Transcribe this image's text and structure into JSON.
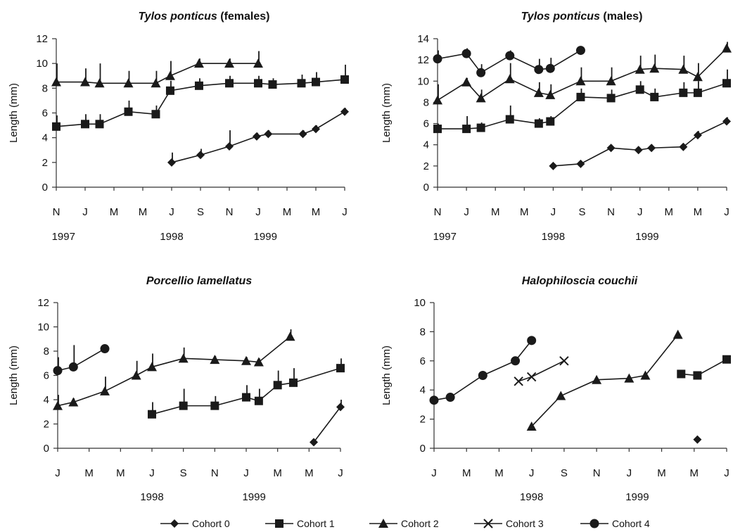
{
  "legend": [
    {
      "name": "Cohort 0",
      "marker": "diamond"
    },
    {
      "name": "Cohort 1",
      "marker": "square"
    },
    {
      "name": "Cohort 2",
      "marker": "triangle"
    },
    {
      "name": "Cohort 3",
      "marker": "cross"
    },
    {
      "name": "Cohort 4",
      "marker": "circle"
    }
  ],
  "colors": {
    "series": "#1a1a1a",
    "axis": "#333333",
    "background": "#ffffff"
  },
  "chart_data": [
    {
      "type": "line",
      "title_species": "Tylos ponticus",
      "title_suffix": "(females)",
      "ylabel": "Length (mm)",
      "ylim": [
        0,
        12
      ],
      "yticks": [
        0,
        2,
        4,
        6,
        8,
        10,
        12
      ],
      "xlim": [
        0,
        20
      ],
      "xticks": [
        {
          "x": 0,
          "label": "N"
        },
        {
          "x": 2,
          "label": "J"
        },
        {
          "x": 4,
          "label": "M"
        },
        {
          "x": 6,
          "label": "M"
        },
        {
          "x": 8,
          "label": "J"
        },
        {
          "x": 10,
          "label": "S"
        },
        {
          "x": 12,
          "label": "N"
        },
        {
          "x": 14,
          "label": "J"
        },
        {
          "x": 16,
          "label": "M"
        },
        {
          "x": 18,
          "label": "M"
        },
        {
          "x": 20,
          "label": "J"
        }
      ],
      "years": [
        {
          "x": 0.5,
          "label": "1997"
        },
        {
          "x": 8,
          "label": "1998"
        },
        {
          "x": 14.5,
          "label": "1999"
        }
      ],
      "series": [
        {
          "name": "Cohort 0",
          "marker": "diamond",
          "points": [
            [
              8,
              2.0,
              0.8
            ],
            [
              10,
              2.6,
              0.5
            ],
            [
              12,
              3.3,
              1.3
            ],
            [
              13.9,
              4.1,
              0.3
            ],
            [
              14.7,
              4.3,
              0.3
            ],
            [
              17.1,
              4.3,
              0.3
            ],
            [
              18,
              4.7,
              0.3
            ],
            [
              20,
              6.1,
              0.3
            ]
          ]
        },
        {
          "name": "Cohort 1",
          "marker": "square",
          "points": [
            [
              0,
              4.9,
              0.9
            ],
            [
              2,
              5.1,
              0.8
            ],
            [
              3,
              5.1,
              0.8
            ],
            [
              5,
              6.1,
              0.9
            ],
            [
              6.9,
              5.9,
              0.7
            ],
            [
              7.9,
              7.8,
              0.8
            ],
            [
              9.9,
              8.2,
              0.6
            ],
            [
              12,
              8.4,
              0.6
            ],
            [
              14,
              8.4,
              0.6
            ],
            [
              15,
              8.3,
              0.5
            ],
            [
              17,
              8.4,
              0.7
            ],
            [
              18,
              8.5,
              0.8
            ],
            [
              20,
              8.7,
              1.2
            ]
          ]
        },
        {
          "name": "Cohort 2",
          "marker": "triangle",
          "points": [
            [
              0,
              8.5,
              1.5
            ],
            [
              2,
              8.5,
              1.1
            ],
            [
              3,
              8.4,
              1.6
            ],
            [
              5,
              8.4,
              1.0
            ],
            [
              6.9,
              8.4,
              1.0
            ],
            [
              7.9,
              9.0,
              1.2
            ],
            [
              9.9,
              10.0,
              0.4
            ],
            [
              12,
              10.0,
              0.4
            ],
            [
              14,
              10.0,
              1.0
            ]
          ]
        }
      ]
    },
    {
      "type": "line",
      "title_species": "Tylos ponticus",
      "title_suffix": "(males)",
      "ylabel": "Length (mm)",
      "ylim": [
        0,
        14
      ],
      "yticks": [
        0,
        2,
        4,
        6,
        8,
        10,
        12,
        14
      ],
      "xlim": [
        0,
        20
      ],
      "xticks": [
        {
          "x": 0,
          "label": "N"
        },
        {
          "x": 2,
          "label": "J"
        },
        {
          "x": 4,
          "label": "M"
        },
        {
          "x": 6,
          "label": "M"
        },
        {
          "x": 8,
          "label": "J"
        },
        {
          "x": 10,
          "label": "S"
        },
        {
          "x": 12,
          "label": "N"
        },
        {
          "x": 14,
          "label": "J"
        },
        {
          "x": 16,
          "label": "M"
        },
        {
          "x": 18,
          "label": "M"
        },
        {
          "x": 20,
          "label": "J"
        }
      ],
      "years": [
        {
          "x": 0.5,
          "label": "1997"
        },
        {
          "x": 8,
          "label": "1998"
        },
        {
          "x": 14.5,
          "label": "1999"
        }
      ],
      "series": [
        {
          "name": "Cohort 0",
          "marker": "diamond",
          "points": [
            [
              8,
              2.0,
              0
            ],
            [
              9.9,
              2.2,
              0.3
            ],
            [
              12,
              3.7,
              0.3
            ],
            [
              13.9,
              3.5,
              0.3
            ],
            [
              14.8,
              3.7,
              0.3
            ],
            [
              17,
              3.8,
              0.3
            ],
            [
              18,
              4.9,
              0.4
            ],
            [
              20,
              6.2,
              0.4
            ]
          ]
        },
        {
          "name": "Cohort 1",
          "marker": "square",
          "points": [
            [
              0,
              5.5,
              0.5
            ],
            [
              2,
              5.5,
              1.2
            ],
            [
              3,
              5.6,
              0.5
            ],
            [
              5,
              6.4,
              1.3
            ],
            [
              7,
              6.0,
              0.5
            ],
            [
              7.8,
              6.2,
              0.5
            ],
            [
              9.9,
              8.5,
              0.8
            ],
            [
              12,
              8.4,
              0.8
            ],
            [
              14,
              9.2,
              0.8
            ],
            [
              15,
              8.5,
              0.8
            ],
            [
              17,
              8.9,
              1.0
            ],
            [
              18,
              8.9,
              1.1
            ],
            [
              20,
              9.8,
              1.3
            ]
          ]
        },
        {
          "name": "Cohort 2",
          "marker": "triangle",
          "points": [
            [
              0,
              8.2,
              1.5
            ],
            [
              2,
              9.9,
              0.4
            ],
            [
              3,
              8.4,
              0.8
            ],
            [
              5,
              10.2,
              1.5
            ],
            [
              7,
              8.9,
              1.0
            ],
            [
              7.8,
              8.7,
              1.0
            ],
            [
              9.9,
              10.0,
              1.3
            ],
            [
              12,
              10.0,
              1.3
            ],
            [
              14,
              11.1,
              1.3
            ],
            [
              15,
              11.2,
              1.3
            ],
            [
              17,
              11.1,
              1.3
            ],
            [
              18,
              10.4,
              1.3
            ],
            [
              20,
              13.1,
              0.6
            ]
          ]
        },
        {
          "name": "Cohort 4",
          "marker": "circle",
          "points": [
            [
              0,
              12.1,
              0.8
            ],
            [
              2,
              12.6,
              0.5
            ],
            [
              3,
              10.8,
              0.8
            ],
            [
              5,
              12.4,
              0.5
            ],
            [
              7,
              11.1,
              1.0
            ],
            [
              7.8,
              11.2,
              1.0
            ],
            [
              9.9,
              12.9,
              0
            ]
          ]
        }
      ]
    },
    {
      "type": "line",
      "title_species": "Porcellio lamellatus",
      "title_suffix": "",
      "ylabel": "Length (mm)",
      "ylim": [
        0,
        12
      ],
      "yticks": [
        0,
        2,
        4,
        6,
        8,
        10,
        12
      ],
      "xlim": [
        0,
        18
      ],
      "xticks": [
        {
          "x": 0,
          "label": "J"
        },
        {
          "x": 2,
          "label": "M"
        },
        {
          "x": 4,
          "label": "M"
        },
        {
          "x": 6,
          "label": "J"
        },
        {
          "x": 8,
          "label": "S"
        },
        {
          "x": 10,
          "label": "N"
        },
        {
          "x": 12,
          "label": "J"
        },
        {
          "x": 14,
          "label": "M"
        },
        {
          "x": 16,
          "label": "M"
        },
        {
          "x": 18,
          "label": "J"
        }
      ],
      "years": [
        {
          "x": 6,
          "label": "1998"
        },
        {
          "x": 12.5,
          "label": "1999"
        }
      ],
      "series": [
        {
          "name": "Cohort 0",
          "marker": "diamond",
          "points": [
            [
              16.3,
              0.5,
              0
            ],
            [
              18,
              3.4,
              0.6
            ]
          ]
        },
        {
          "name": "Cohort 1",
          "marker": "square",
          "points": [
            [
              6,
              2.8,
              1.0
            ],
            [
              8,
              3.5,
              1.4
            ],
            [
              10,
              3.5,
              0.8
            ],
            [
              12,
              4.2,
              1.0
            ],
            [
              12.8,
              3.9,
              1.0
            ],
            [
              14,
              5.2,
              1.2
            ],
            [
              15,
              5.4,
              1.2
            ],
            [
              18,
              6.6,
              0.8
            ]
          ]
        },
        {
          "name": "Cohort 2",
          "marker": "triangle",
          "points": [
            [
              0,
              3.5,
              0.9
            ],
            [
              1,
              3.8,
              0.3
            ],
            [
              3,
              4.7,
              1.2
            ],
            [
              5,
              6.0,
              1.2
            ],
            [
              6,
              6.7,
              1.1
            ],
            [
              8,
              7.4,
              0.9
            ],
            [
              10,
              7.3,
              0.3
            ],
            [
              12,
              7.2,
              0.3
            ],
            [
              12.8,
              7.1,
              0.3
            ],
            [
              14.8,
              9.2,
              0.6
            ]
          ]
        },
        {
          "name": "Cohort 4",
          "marker": "circle",
          "points": [
            [
              0,
              6.4,
              1.1
            ],
            [
              1,
              6.7,
              1.8
            ],
            [
              3,
              8.2,
              0.3
            ]
          ]
        }
      ]
    },
    {
      "type": "line",
      "title_species": "Halophiloscia couchii",
      "title_suffix": "",
      "ylabel": "Length (mm)",
      "ylim": [
        0,
        10
      ],
      "yticks": [
        0,
        2,
        4,
        6,
        8,
        10
      ],
      "xlim": [
        0,
        18
      ],
      "xticks": [
        {
          "x": 0,
          "label": "J"
        },
        {
          "x": 2,
          "label": "M"
        },
        {
          "x": 4,
          "label": "M"
        },
        {
          "x": 6,
          "label": "J"
        },
        {
          "x": 8,
          "label": "S"
        },
        {
          "x": 10,
          "label": "N"
        },
        {
          "x": 12,
          "label": "J"
        },
        {
          "x": 14,
          "label": "M"
        },
        {
          "x": 16,
          "label": "M"
        },
        {
          "x": 18,
          "label": "J"
        }
      ],
      "years": [
        {
          "x": 6,
          "label": "1998"
        },
        {
          "x": 12.5,
          "label": "1999"
        }
      ],
      "series": [
        {
          "name": "Cohort 0",
          "marker": "diamond",
          "points": [
            [
              16.2,
              0.6,
              0
            ]
          ]
        },
        {
          "name": "Cohort 1",
          "marker": "square",
          "points": [
            [
              15.2,
              5.1,
              0
            ],
            [
              16.2,
              5.0,
              0
            ],
            [
              18,
              6.1,
              0
            ]
          ]
        },
        {
          "name": "Cohort 2",
          "marker": "triangle",
          "points": [
            [
              6,
              1.5,
              0
            ],
            [
              7.8,
              3.6,
              0
            ],
            [
              10,
              4.7,
              0
            ],
            [
              12,
              4.8,
              0
            ],
            [
              13,
              5.0,
              0
            ],
            [
              15,
              7.8,
              0
            ]
          ]
        },
        {
          "name": "Cohort 3",
          "marker": "cross",
          "points": [
            [
              5.2,
              4.6,
              0
            ],
            [
              6,
              4.9,
              0
            ],
            [
              8,
              6.0,
              0
            ]
          ]
        },
        {
          "name": "Cohort 4",
          "marker": "circle",
          "points": [
            [
              0,
              3.3,
              0
            ],
            [
              1,
              3.5,
              0
            ],
            [
              3,
              5.0,
              0
            ],
            [
              5,
              6.0,
              0
            ],
            [
              6,
              7.4,
              0
            ]
          ]
        }
      ]
    }
  ]
}
